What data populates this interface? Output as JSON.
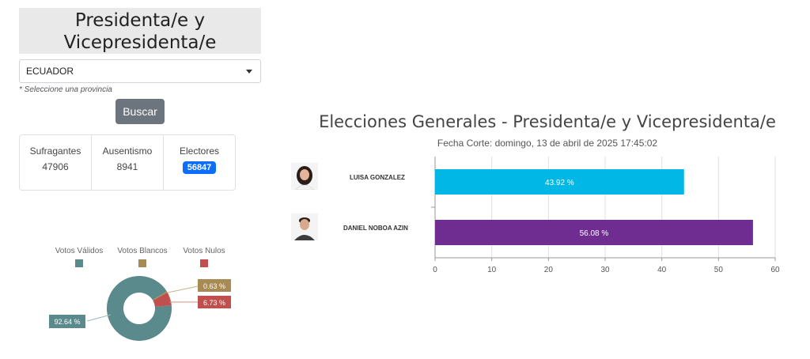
{
  "filter": {
    "title_line1": "Presidenta/e y",
    "title_line2": "Vicepresidenta/e",
    "province_value": "ECUADOR",
    "hint": "* Seleccione una provincia",
    "search_label": "Buscar"
  },
  "stats": {
    "sufragantes_label": "Sufragantes",
    "sufragantes_value": "47906",
    "ausentismo_label": "Ausentismo",
    "ausentismo_value": "8941",
    "electores_label": "Electores",
    "electores_value": "56847"
  },
  "donut": {
    "legend": [
      {
        "label": "Votos Válidos",
        "color": "#5b8a8c"
      },
      {
        "label": "Votos Blancos",
        "color": "#a88a55"
      },
      {
        "label": "Votos Nulos",
        "color": "#c0504d"
      }
    ],
    "values": [
      {
        "label": "92.64 %",
        "value": 92.64,
        "color": "#5b8a8c"
      },
      {
        "label": "0.63 %",
        "value": 0.63,
        "color": "#a88a55"
      },
      {
        "label": "6.73 %",
        "value": 6.73,
        "color": "#c0504d"
      }
    ]
  },
  "results": {
    "title": "Elecciones Generales - Presidenta/e y Vicepresidenta/e",
    "subtitle": "Fecha Corte: domingo, 13 de abril de 2025 17:45:02"
  },
  "chart_data": {
    "type": "bar",
    "orientation": "horizontal",
    "categories": [
      "LUISA GONZALEZ",
      "DANIEL NOBOA AZIN"
    ],
    "values": [
      43.92,
      56.08
    ],
    "value_labels": [
      "43.92 %",
      "56.08 %"
    ],
    "colors": [
      "#00b7e6",
      "#6f2c91"
    ],
    "xlim": [
      0,
      60
    ],
    "xticks": [
      0,
      10,
      20,
      30,
      40,
      50,
      60
    ],
    "title": "Elecciones Generales - Presidenta/e y Vicepresidenta/e",
    "xlabel": "",
    "ylabel": "",
    "grid": true
  }
}
